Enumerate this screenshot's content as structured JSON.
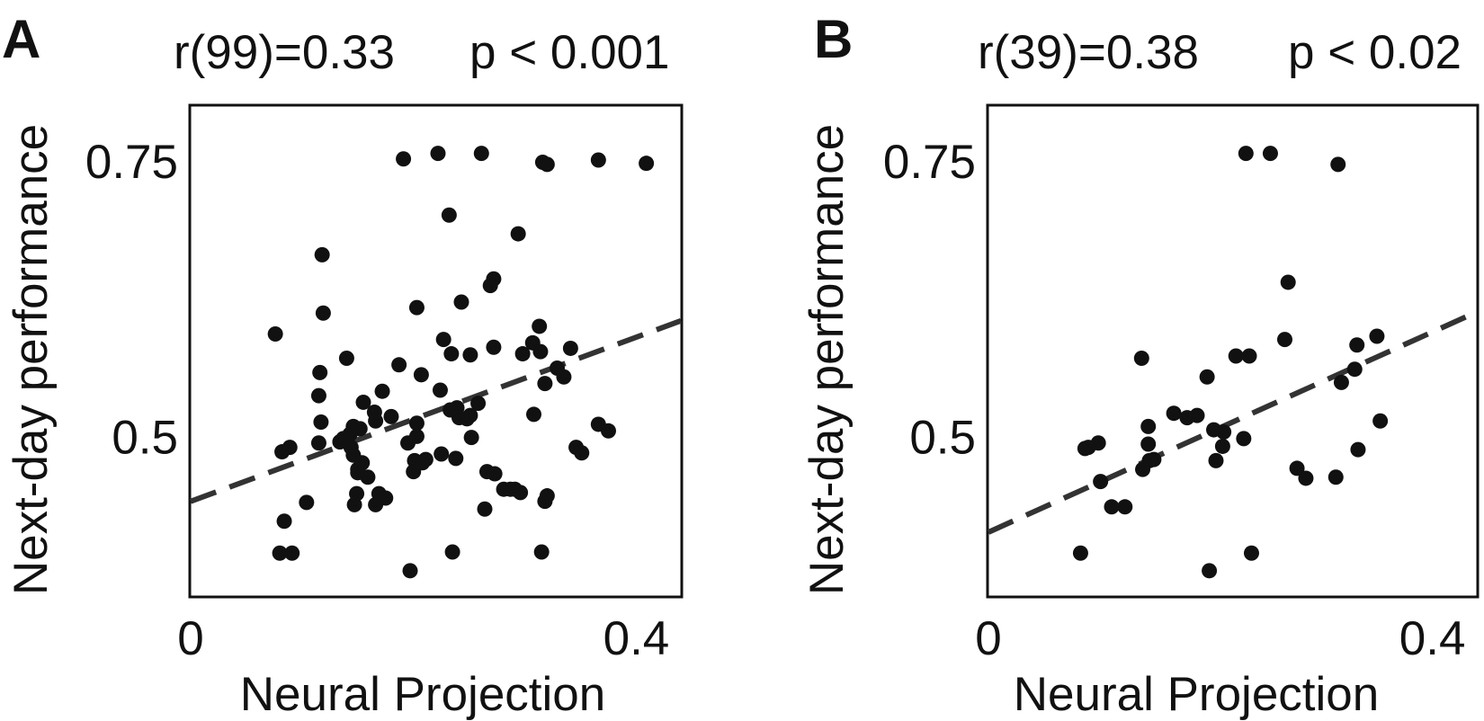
{
  "chart_data": [
    {
      "type": "scatter",
      "panel_label": "A",
      "stat_r": "r(99)=0.33",
      "stat_p": "p < 0.001",
      "xlabel": "Neural Projection",
      "ylabel": "Next-day performance",
      "x_ticks": [
        {
          "value": 0,
          "label": "0"
        },
        {
          "value": 0.4,
          "label": "0.4"
        }
      ],
      "y_ticks": [
        {
          "value": 0.5,
          "label": "0.5"
        },
        {
          "value": 0.75,
          "label": "0.75"
        }
      ],
      "xlim": [
        0,
        0.44
      ],
      "ylim": [
        0.355,
        0.8
      ],
      "trend": {
        "style": "dashed",
        "x": [
          0,
          0.44
        ],
        "y": [
          0.441,
          0.605
        ]
      },
      "points": {
        "x": [
          0.191,
          0.222,
          0.261,
          0.316,
          0.32,
          0.366,
          0.409,
          0.232,
          0.294,
          0.118,
          0.076,
          0.119,
          0.203,
          0.243,
          0.272,
          0.269,
          0.307,
          0.313,
          0.341,
          0.14,
          0.116,
          0.172,
          0.227,
          0.234,
          0.251,
          0.272,
          0.314,
          0.318,
          0.298,
          0.329,
          0.335,
          0.187,
          0.207,
          0.224,
          0.258,
          0.239,
          0.203,
          0.115,
          0.117,
          0.155,
          0.165,
          0.18,
          0.146,
          0.241,
          0.233,
          0.248,
          0.251,
          0.203,
          0.252,
          0.308,
          0.366,
          0.375,
          0.115,
          0.134,
          0.144,
          0.089,
          0.082,
          0.146,
          0.15,
          0.154,
          0.15,
          0.195,
          0.201,
          0.211,
          0.238,
          0.346,
          0.351,
          0.152,
          0.166,
          0.143,
          0.137,
          0.134,
          0.2,
          0.208,
          0.225,
          0.266,
          0.273,
          0.281,
          0.291,
          0.318,
          0.32,
          0.159,
          0.149,
          0.169,
          0.175,
          0.147,
          0.166,
          0.287,
          0.296,
          0.104,
          0.084,
          0.264,
          0.08,
          0.091,
          0.235,
          0.315,
          0.197
        ],
        "y": [
          0.752,
          0.757,
          0.757,
          0.749,
          0.747,
          0.751,
          0.748,
          0.701,
          0.684,
          0.665,
          0.593,
          0.612,
          0.617,
          0.622,
          0.643,
          0.637,
          0.585,
          0.6,
          0.58,
          0.571,
          0.558,
          0.541,
          0.588,
          0.575,
          0.574,
          0.581,
          0.577,
          0.548,
          0.575,
          0.562,
          0.554,
          0.565,
          0.556,
          0.542,
          0.53,
          0.526,
          0.512,
          0.537,
          0.513,
          0.531,
          0.522,
          0.518,
          0.509,
          0.517,
          0.524,
          0.516,
          0.519,
          0.5,
          0.499,
          0.52,
          0.511,
          0.505,
          0.494,
          0.495,
          0.49,
          0.49,
          0.486,
          0.483,
          0.47,
          0.476,
          0.467,
          0.494,
          0.478,
          0.479,
          0.48,
          0.49,
          0.485,
          0.507,
          0.514,
          0.502,
          0.498,
          0.495,
          0.468,
          0.476,
          0.484,
          0.468,
          0.466,
          0.452,
          0.452,
          0.441,
          0.446,
          0.463,
          0.448,
          0.448,
          0.444,
          0.438,
          0.438,
          0.452,
          0.449,
          0.44,
          0.423,
          0.434,
          0.394,
          0.394,
          0.395,
          0.395,
          0.378
        ]
      }
    },
    {
      "type": "scatter",
      "panel_label": "B",
      "stat_r": "r(39)=0.38",
      "stat_p": "p < 0.02",
      "xlabel": "Neural Projection",
      "ylabel": "Next-day performance",
      "x_ticks": [
        {
          "value": 0,
          "label": "0"
        },
        {
          "value": 0.4,
          "label": "0.4"
        }
      ],
      "y_ticks": [
        {
          "value": 0.5,
          "label": "0.5"
        },
        {
          "value": 0.75,
          "label": "0.75"
        }
      ],
      "xlim": [
        0,
        0.44
      ],
      "ylim": [
        0.355,
        0.8
      ],
      "trend": {
        "style": "dashed",
        "x": [
          0,
          0.44
        ],
        "y": [
          0.413,
          0.613
        ]
      },
      "points": {
        "x": [
          0.232,
          0.254,
          0.315,
          0.27,
          0.138,
          0.223,
          0.235,
          0.332,
          0.267,
          0.35,
          0.318,
          0.33,
          0.197,
          0.353,
          0.188,
          0.179,
          0.167,
          0.212,
          0.144,
          0.203,
          0.099,
          0.087,
          0.23,
          0.09,
          0.333,
          0.144,
          0.211,
          0.149,
          0.205,
          0.145,
          0.278,
          0.286,
          0.313,
          0.139,
          0.101,
          0.111,
          0.123,
          0.083,
          0.237,
          0.199
        ],
        "y": [
          0.757,
          0.757,
          0.747,
          0.64,
          0.571,
          0.573,
          0.573,
          0.583,
          0.588,
          0.591,
          0.549,
          0.561,
          0.554,
          0.514,
          0.519,
          0.517,
          0.521,
          0.504,
          0.509,
          0.506,
          0.494,
          0.489,
          0.498,
          0.49,
          0.488,
          0.493,
          0.491,
          0.479,
          0.478,
          0.478,
          0.471,
          0.462,
          0.463,
          0.47,
          0.459,
          0.436,
          0.436,
          0.394,
          0.394,
          0.378
        ]
      }
    }
  ]
}
